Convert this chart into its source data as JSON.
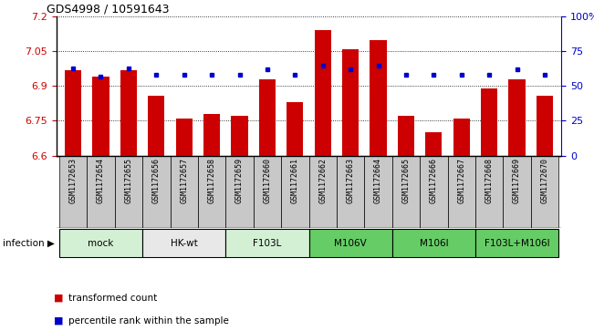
{
  "title": "GDS4998 / 10591643",
  "samples": [
    "GSM1172653",
    "GSM1172654",
    "GSM1172655",
    "GSM1172656",
    "GSM1172657",
    "GSM1172658",
    "GSM1172659",
    "GSM1172660",
    "GSM1172661",
    "GSM1172662",
    "GSM1172663",
    "GSM1172664",
    "GSM1172665",
    "GSM1172666",
    "GSM1172667",
    "GSM1172668",
    "GSM1172669",
    "GSM1172670"
  ],
  "bar_values": [
    6.97,
    6.94,
    6.97,
    6.86,
    6.76,
    6.78,
    6.77,
    6.93,
    6.83,
    7.14,
    7.06,
    7.1,
    6.77,
    6.7,
    6.76,
    6.89,
    6.93,
    6.86
  ],
  "blue_dot_values": [
    63,
    57,
    63,
    58,
    58,
    58,
    58,
    62,
    58,
    65,
    62,
    65,
    58,
    58,
    58,
    58,
    62,
    58
  ],
  "groups": [
    {
      "label": "mock",
      "start": 0,
      "end": 3,
      "color": "#d4f0d4"
    },
    {
      "label": "HK-wt",
      "start": 3,
      "end": 6,
      "color": "#e8e8e8"
    },
    {
      "label": "F103L",
      "start": 6,
      "end": 9,
      "color": "#d4f0d4"
    },
    {
      "label": "M106V",
      "start": 9,
      "end": 12,
      "color": "#66cc66"
    },
    {
      "label": "M106I",
      "start": 12,
      "end": 15,
      "color": "#66cc66"
    },
    {
      "label": "F103L+M106I",
      "start": 15,
      "end": 18,
      "color": "#66cc66"
    }
  ],
  "ylim": [
    6.6,
    7.2
  ],
  "yticks": [
    6.6,
    6.75,
    6.9,
    7.05,
    7.2
  ],
  "right_yticks": [
    0,
    25,
    50,
    75,
    100
  ],
  "bar_color": "#cc0000",
  "dot_color": "#0000cc",
  "bg_color": "#c8c8c8",
  "infection_label": "infection",
  "legend_bar": "transformed count",
  "legend_dot": "percentile rank within the sample"
}
